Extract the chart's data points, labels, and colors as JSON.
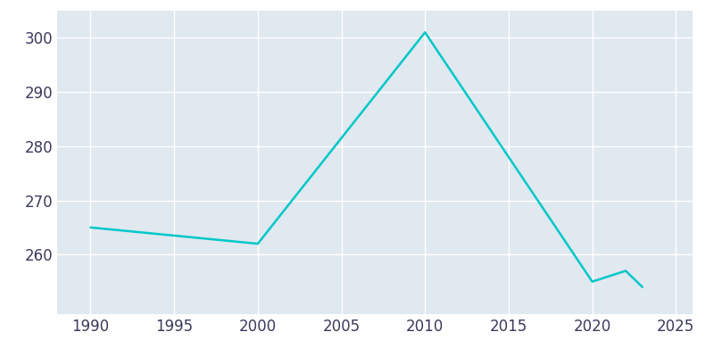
{
  "years": [
    1990,
    2000,
    2010,
    2020,
    2022,
    2023
  ],
  "population": [
    265,
    262,
    301,
    255,
    257,
    254
  ],
  "line_color": "#00c8c8",
  "line_width": 1.8,
  "fig_bg_color": "#ffffff",
  "plot_bg_color": "#e0e8f0",
  "grid_color": "#ffffff",
  "xlabel": "",
  "ylabel": "",
  "xlim": [
    1988,
    2026
  ],
  "ylim": [
    249,
    305
  ],
  "yticks": [
    260,
    270,
    280,
    290,
    300
  ],
  "xticks": [
    1990,
    1995,
    2000,
    2005,
    2010,
    2015,
    2020,
    2025
  ],
  "tick_label_color": "#3a3a5c",
  "tick_label_size": 12
}
